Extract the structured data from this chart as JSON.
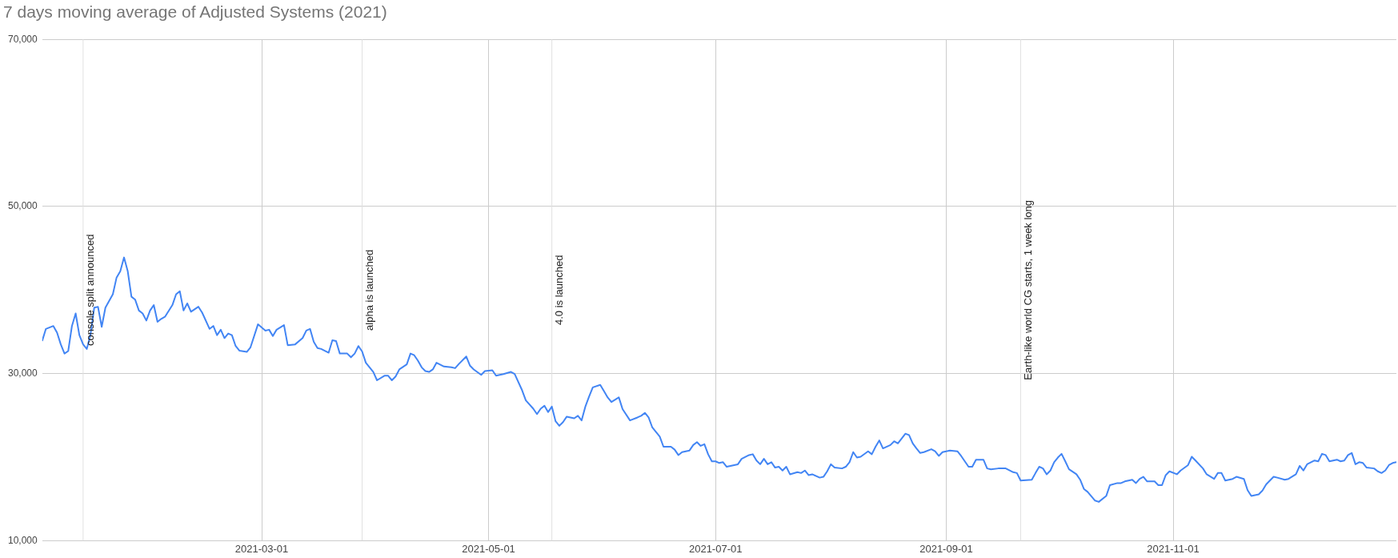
{
  "chart_data": {
    "type": "line",
    "title": "7 days moving average of Adjusted Systems (2021)",
    "x": [
      "2021-01-01",
      "2021-01-02",
      "2021-01-04",
      "2021-01-05",
      "2021-01-06",
      "2021-01-07",
      "2021-01-08",
      "2021-01-09",
      "2021-01-10",
      "2021-01-11",
      "2021-01-12",
      "2021-01-13",
      "2021-01-14",
      "2021-01-15",
      "2021-01-16",
      "2021-01-17",
      "2021-01-18",
      "2021-01-20",
      "2021-01-21",
      "2021-01-22",
      "2021-01-23",
      "2021-01-24",
      "2021-01-25",
      "2021-01-26",
      "2021-01-27",
      "2021-01-28",
      "2021-01-29",
      "2021-01-30",
      "2021-01-31",
      "2021-02-01",
      "2021-02-02",
      "2021-02-03",
      "2021-02-05",
      "2021-02-06",
      "2021-02-07",
      "2021-02-08",
      "2021-02-09",
      "2021-02-10",
      "2021-02-12",
      "2021-02-13",
      "2021-02-15",
      "2021-02-16",
      "2021-02-17",
      "2021-02-18",
      "2021-02-19",
      "2021-02-20",
      "2021-02-21",
      "2021-02-22",
      "2021-02-23",
      "2021-02-25",
      "2021-02-26",
      "2021-02-28",
      "2021-03-02",
      "2021-03-03",
      "2021-03-04",
      "2021-03-05",
      "2021-03-07",
      "2021-03-08",
      "2021-03-10",
      "2021-03-12",
      "2021-03-13",
      "2021-03-14",
      "2021-03-15",
      "2021-03-16",
      "2021-03-17",
      "2021-03-19",
      "2021-03-20",
      "2021-03-21",
      "2021-03-22",
      "2021-03-24",
      "2021-03-25",
      "2021-03-26",
      "2021-03-27",
      "2021-03-28",
      "2021-03-29",
      "2021-03-31",
      "2021-04-01",
      "2021-04-03",
      "2021-04-04",
      "2021-04-05",
      "2021-04-06",
      "2021-04-07",
      "2021-04-09",
      "2021-04-10",
      "2021-04-11",
      "2021-04-12",
      "2021-04-13",
      "2021-04-14",
      "2021-04-15",
      "2021-04-16",
      "2021-04-17",
      "2021-04-19",
      "2021-04-21",
      "2021-04-22",
      "2021-04-23",
      "2021-04-25",
      "2021-04-26",
      "2021-04-27",
      "2021-04-29",
      "2021-04-30",
      "2021-05-02",
      "2021-05-03",
      "2021-05-04",
      "2021-05-05",
      "2021-05-07",
      "2021-05-08",
      "2021-05-10",
      "2021-05-11",
      "2021-05-13",
      "2021-05-14",
      "2021-05-15",
      "2021-05-16",
      "2021-05-17",
      "2021-05-18",
      "2021-05-19",
      "2021-05-20",
      "2021-05-21",
      "2021-05-22",
      "2021-05-24",
      "2021-05-25",
      "2021-05-26",
      "2021-05-27",
      "2021-05-28",
      "2021-05-29",
      "2021-05-31",
      "2021-06-01",
      "2021-06-02",
      "2021-06-03",
      "2021-06-05",
      "2021-06-06",
      "2021-06-08",
      "2021-06-10",
      "2021-06-11",
      "2021-06-12",
      "2021-06-13",
      "2021-06-14",
      "2021-06-16",
      "2021-06-17",
      "2021-06-19",
      "2021-06-20",
      "2021-06-21",
      "2021-06-22",
      "2021-06-24",
      "2021-06-25",
      "2021-06-26",
      "2021-06-27",
      "2021-06-28",
      "2021-06-29",
      "2021-06-30",
      "2021-07-01",
      "2021-07-02",
      "2021-07-03",
      "2021-07-04",
      "2021-07-06",
      "2021-07-07",
      "2021-07-08",
      "2021-07-10",
      "2021-07-11",
      "2021-07-12",
      "2021-07-13",
      "2021-07-14",
      "2021-07-15",
      "2021-07-16",
      "2021-07-17",
      "2021-07-18",
      "2021-07-19",
      "2021-07-20",
      "2021-07-21",
      "2021-07-23",
      "2021-07-24",
      "2021-07-25",
      "2021-07-26",
      "2021-07-27",
      "2021-07-29",
      "2021-07-30",
      "2021-07-31",
      "2021-08-01",
      "2021-08-02",
      "2021-08-04",
      "2021-08-05",
      "2021-08-06",
      "2021-08-07",
      "2021-08-08",
      "2021-08-09",
      "2021-08-11",
      "2021-08-12",
      "2021-08-13",
      "2021-08-14",
      "2021-08-15",
      "2021-08-17",
      "2021-08-18",
      "2021-08-19",
      "2021-08-21",
      "2021-08-22",
      "2021-08-23",
      "2021-08-24",
      "2021-08-25",
      "2021-08-26",
      "2021-08-28",
      "2021-08-29",
      "2021-08-30",
      "2021-08-31",
      "2021-09-01",
      "2021-09-02",
      "2021-09-04",
      "2021-09-05",
      "2021-09-06",
      "2021-09-07",
      "2021-09-08",
      "2021-09-09",
      "2021-09-11",
      "2021-09-12",
      "2021-09-13",
      "2021-09-15",
      "2021-09-17",
      "2021-09-19",
      "2021-09-20",
      "2021-09-21",
      "2021-09-24",
      "2021-09-25",
      "2021-09-26",
      "2021-09-27",
      "2021-09-28",
      "2021-09-29",
      "2021-09-30",
      "2021-10-01",
      "2021-10-02",
      "2021-10-03",
      "2021-10-04",
      "2021-10-06",
      "2021-10-07",
      "2021-10-08",
      "2021-10-09",
      "2021-10-11",
      "2021-10-12",
      "2021-10-14",
      "2021-10-15",
      "2021-10-17",
      "2021-10-18",
      "2021-10-19",
      "2021-10-21",
      "2021-10-22",
      "2021-10-23",
      "2021-10-24",
      "2021-10-25",
      "2021-10-27",
      "2021-10-28",
      "2021-10-29",
      "2021-10-30",
      "2021-10-31",
      "2021-11-02",
      "2021-11-03",
      "2021-11-05",
      "2021-11-06",
      "2021-11-07",
      "2021-11-09",
      "2021-11-10",
      "2021-11-12",
      "2021-11-13",
      "2021-11-14",
      "2021-11-15",
      "2021-11-17",
      "2021-11-18",
      "2021-11-20",
      "2021-11-21",
      "2021-11-22",
      "2021-11-24",
      "2021-11-25",
      "2021-11-26",
      "2021-11-28",
      "2021-11-29",
      "2021-12-01",
      "2021-12-02",
      "2021-12-04",
      "2021-12-05",
      "2021-12-06",
      "2021-12-07",
      "2021-12-09",
      "2021-12-10",
      "2021-12-11",
      "2021-12-12",
      "2021-12-13",
      "2021-12-15",
      "2021-12-16",
      "2021-12-17",
      "2021-12-18",
      "2021-12-19",
      "2021-12-20",
      "2021-12-21",
      "2021-12-22",
      "2021-12-23",
      "2021-12-25",
      "2021-12-26",
      "2021-12-27",
      "2021-12-28",
      "2021-12-29",
      "2021-12-30",
      "2021-12-31"
    ],
    "series": [
      {
        "color": "#4285f4",
        "values": [
          33900,
          35350,
          35700,
          34900,
          33500,
          32400,
          32700,
          35700,
          37200,
          34600,
          33500,
          32950,
          34700,
          37900,
          38000,
          35600,
          37900,
          39500,
          41500,
          42250,
          43900,
          42250,
          39200,
          38850,
          37550,
          37200,
          36350,
          37550,
          38200,
          36200,
          36550,
          36800,
          38200,
          39500,
          39850,
          37550,
          38400,
          37400,
          38000,
          37300,
          35350,
          35700,
          34600,
          35250,
          34250,
          34800,
          34600,
          33300,
          32750,
          32600,
          33150,
          35900,
          35150,
          35250,
          34500,
          35250,
          35800,
          33400,
          33500,
          34250,
          35150,
          35350,
          33800,
          33050,
          32950,
          32500,
          34000,
          33900,
          32400,
          32400,
          31950,
          32400,
          33300,
          32650,
          31300,
          30200,
          29200,
          29750,
          29750,
          29200,
          29650,
          30500,
          31100,
          32400,
          32200,
          31550,
          30750,
          30300,
          30200,
          30500,
          31300,
          30850,
          30750,
          30650,
          31150,
          32050,
          30950,
          30500,
          29850,
          30300,
          30400,
          29750,
          29850,
          29950,
          30200,
          29950,
          28000,
          26800,
          25800,
          25150,
          25800,
          26150,
          25400,
          26050,
          24300,
          23750,
          24200,
          24850,
          24650,
          24950,
          24400,
          26050,
          27250,
          28350,
          28650,
          27900,
          27150,
          26600,
          27150,
          25750,
          24400,
          24750,
          24950,
          25300,
          24750,
          23550,
          22450,
          21250,
          21250,
          20900,
          20250,
          20600,
          20800,
          21450,
          21800,
          21350,
          21550,
          20350,
          19500,
          19500,
          19300,
          19400,
          18850,
          19050,
          19150,
          19800,
          20250,
          20350,
          19600,
          19150,
          19800,
          19150,
          19400,
          18750,
          18850,
          18400,
          18850,
          17950,
          18200,
          18100,
          18400,
          17850,
          17950,
          17550,
          17650,
          18300,
          19150,
          18750,
          18650,
          18850,
          19400,
          20600,
          19950,
          20050,
          20700,
          20350,
          21250,
          22000,
          21050,
          21450,
          21900,
          21650,
          22800,
          22650,
          21650,
          21050,
          20500,
          20600,
          20950,
          20700,
          20150,
          20600,
          20700,
          20800,
          20700,
          20150,
          19500,
          18850,
          18850,
          19700,
          19700,
          18650,
          18550,
          18650,
          18650,
          18200,
          18100,
          17200,
          17300,
          18100,
          18850,
          18650,
          17950,
          18400,
          19400,
          19950,
          20400,
          19500,
          18550,
          17950,
          17300,
          16200,
          15850,
          14800,
          14650,
          15350,
          16650,
          16900,
          16900,
          17100,
          17300,
          16900,
          17400,
          17650,
          17100,
          17100,
          16650,
          16650,
          17850,
          18300,
          17950,
          18400,
          19050,
          20050,
          19600,
          18650,
          17950,
          17400,
          18100,
          18100,
          17200,
          17400,
          17650,
          17400,
          16050,
          15350,
          15550,
          16000,
          16750,
          17650,
          17550,
          17300,
          17400,
          17950,
          18950,
          18400,
          19150,
          19600,
          19500,
          20400,
          20250,
          19500,
          19700,
          19500,
          19600,
          20250,
          20500,
          19150,
          19400,
          19300,
          18750,
          18650,
          18300,
          18100,
          18400,
          19050,
          19300,
          19400
        ]
      }
    ],
    "xlim": [
      "2021-01-01",
      "2021-12-31"
    ],
    "xticks": [
      "2021-03-01",
      "2021-05-01",
      "2021-07-01",
      "2021-09-01",
      "2021-11-01"
    ],
    "ylim": [
      10000,
      70000
    ],
    "yticks": [
      {
        "value": 10000,
        "label": "10,000"
      },
      {
        "value": 30000,
        "label": "30,000"
      },
      {
        "value": 50000,
        "label": "50,000"
      },
      {
        "value": 70000,
        "label": "70,000"
      }
    ],
    "grid": true,
    "legend": false,
    "marker": "none",
    "line_style": "solid",
    "ref_lines": [
      {
        "axis": "x",
        "value": "2021-01-12",
        "label": "console split announced",
        "color": "#e0e0e0"
      },
      {
        "axis": "x",
        "value": "2021-03-28",
        "label": "alpha is launched",
        "color": "#e0e0e0"
      },
      {
        "axis": "x",
        "value": "2021-05-18",
        "label": "4.0 is launched",
        "color": "#e0e0e0"
      },
      {
        "axis": "x",
        "value": "2021-09-21",
        "label": "Earth-like world CG starts, 1 week long",
        "color": "#e0e0e0"
      }
    ]
  }
}
